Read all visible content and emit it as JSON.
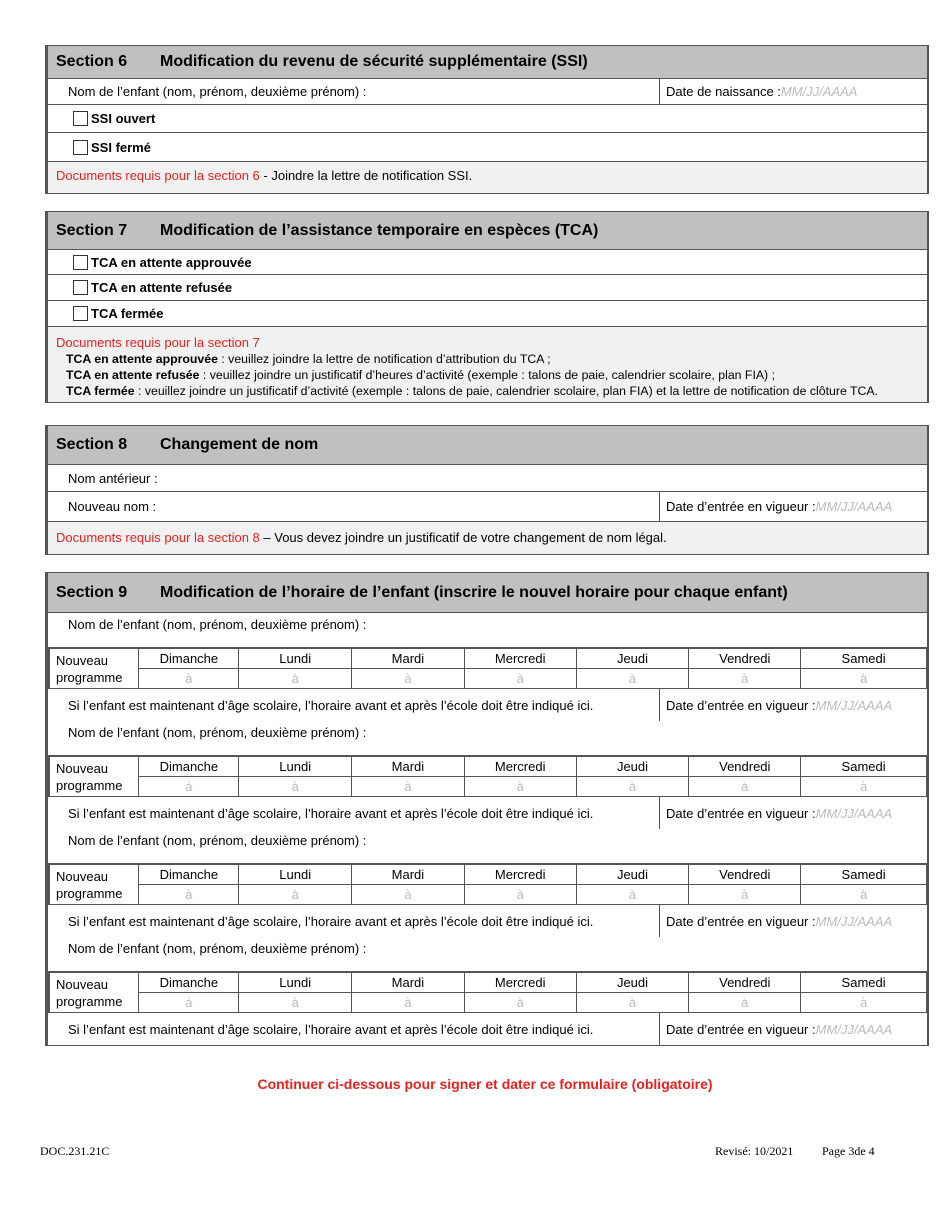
{
  "s6": {
    "num": "Section 6",
    "title": "Modification du revenu de sécurité supplémentaire (SSI)",
    "child_label": "Nom de l’enfant (nom, prénom, deuxième prénom) :",
    "dob_label": "Date de naissance : ",
    "dob_placeholder": "MM/JJ/AAAA",
    "opt1": "SSI ouvert",
    "opt2": "SSI fermé",
    "docs_red": "Documents requis pour la section 6",
    "docs_text": " - Joindre la lettre de notification SSI."
  },
  "s7": {
    "num": "Section 7",
    "title": "Modification de l’assistance temporaire en espèces (TCA)",
    "opt1": "TCA en attente approuvée",
    "opt2": "TCA en attente refusée",
    "opt3": "TCA fermée",
    "docs_red": "Documents requis pour la section 7",
    "d1b": "TCA en attente approuvée",
    "d1": " : veuillez joindre la lettre de notification d’attribution du TCA ;",
    "d2b": "TCA en attente refusée",
    "d2": " : veuillez joindre un justificatif d’heures d’activité (exemple : talons de paie, calendrier scolaire, plan FIA) ;",
    "d3b": "TCA fermée",
    "d3": " : veuillez joindre un justificatif d’activité (exemple : talons de paie, calendrier scolaire, plan FIA) et la lettre de notification de clôture TCA."
  },
  "s8": {
    "num": "Section 8",
    "title": "Changement de nom",
    "old": "Nom antérieur :",
    "new": "Nouveau nom :",
    "eff_label": "Date d’entrée en vigueur : ",
    "eff_placeholder": "MM/JJ/AAAA",
    "docs_red": "Documents requis pour la section 8",
    "docs_text": " – Vous devez joindre un justificatif de votre changement de nom légal."
  },
  "s9": {
    "num": "Section 9",
    "title": "Modification de l’horaire de l’enfant (inscrire le nouvel horaire pour chaque enfant)",
    "child_label": "Nom de l’enfant (nom, prénom, deuxième prénom) :",
    "new_prog_1": "Nouveau",
    "new_prog_2": "programme",
    "days": [
      "Dimanche",
      "Lundi",
      "Mardi",
      "Mercredi",
      "Jeudi",
      "Vendredi",
      "Samedi"
    ],
    "to": "à",
    "note": "Si l’enfant est maintenant d’âge scolaire, l’horaire avant et après l’école doit être indiqué ici.",
    "eff_label": "Date d’entrée en vigueur : ",
    "eff_placeholder": "MM/JJ/AAAA",
    "blocks": 4
  },
  "continue": "Continuer ci-dessous pour signer et dater ce formulaire (obligatoire)",
  "footer": {
    "doc": "DOC.231.21C",
    "revised": "Revisé: 10/2021",
    "page": "Page 3de 4"
  }
}
